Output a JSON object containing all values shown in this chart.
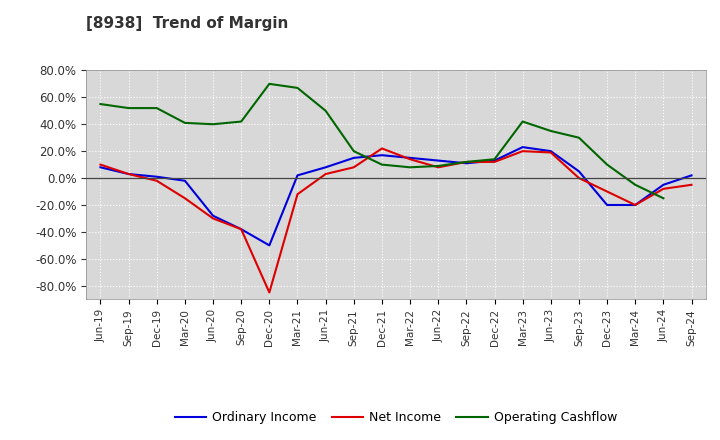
{
  "title": "[8938]  Trend of Margin",
  "x_labels": [
    "Jun-19",
    "Sep-19",
    "Dec-19",
    "Mar-20",
    "Jun-20",
    "Sep-20",
    "Dec-20",
    "Mar-21",
    "Jun-21",
    "Sep-21",
    "Dec-21",
    "Mar-22",
    "Jun-22",
    "Sep-22",
    "Dec-22",
    "Mar-23",
    "Jun-23",
    "Sep-23",
    "Dec-23",
    "Mar-24",
    "Jun-24",
    "Sep-24"
  ],
  "ordinary_income": [
    8.0,
    3.0,
    1.0,
    -2.0,
    -28.0,
    -38.0,
    -50.0,
    2.0,
    8.0,
    15.0,
    17.0,
    15.0,
    13.0,
    11.0,
    13.0,
    23.0,
    20.0,
    5.0,
    -20.0,
    -20.0,
    -5.0,
    2.0
  ],
  "net_income": [
    10.0,
    3.0,
    -2.0,
    -15.0,
    -30.0,
    -38.0,
    -85.0,
    -12.0,
    3.0,
    8.0,
    22.0,
    14.0,
    8.0,
    12.0,
    12.0,
    20.0,
    19.0,
    0.0,
    -10.0,
    -20.0,
    -8.0,
    -5.0
  ],
  "operating_cashflow": [
    55.0,
    52.0,
    52.0,
    41.0,
    40.0,
    42.0,
    70.0,
    67.0,
    50.0,
    20.0,
    10.0,
    8.0,
    9.0,
    12.0,
    14.0,
    42.0,
    35.0,
    30.0,
    10.0,
    -5.0,
    -15.0,
    null
  ],
  "ordinary_income_color": "#0000dd",
  "net_income_color": "#dd0000",
  "operating_cashflow_color": "#006600",
  "background_color": "#ffffff",
  "plot_bg_color": "#d8d8d8",
  "grid_color": "#ffffff",
  "title_color": "#333333",
  "ylim": [
    -90,
    80
  ],
  "yticks": [
    -80,
    -60,
    -40,
    -20,
    0,
    20,
    40,
    60,
    80
  ],
  "legend_labels": [
    "Ordinary Income",
    "Net Income",
    "Operating Cashflow"
  ]
}
